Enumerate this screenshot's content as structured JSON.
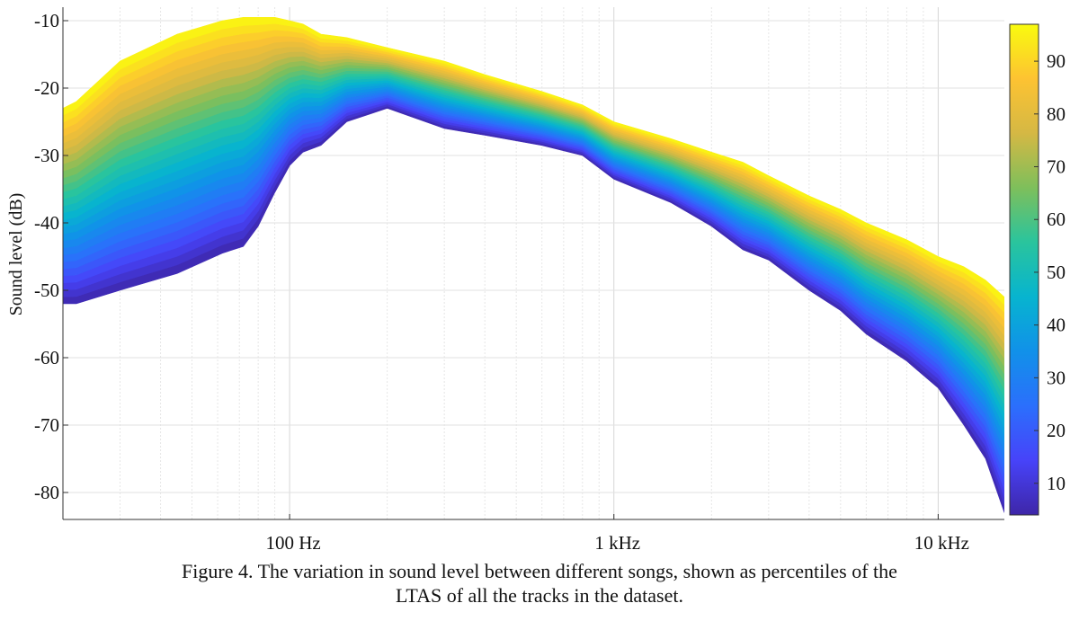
{
  "figure": {
    "caption_line1": "Figure 4. The variation in sound level between different songs, shown as percentiles of the",
    "caption_line2": "LTAS of all the tracks in the dataset."
  },
  "chart_data": {
    "type": "area",
    "ylabel": "Sound level (dB)",
    "xscale": "log",
    "xlim": [
      20,
      16000
    ],
    "ylim": [
      -84,
      -8
    ],
    "x_ticks": [
      {
        "value": 100,
        "label": "100 Hz"
      },
      {
        "value": 1000,
        "label": "1 kHz"
      },
      {
        "value": 10000,
        "label": "10 kHz"
      }
    ],
    "y_ticks": [
      -10,
      -20,
      -30,
      -40,
      -50,
      -60,
      -70,
      -80
    ],
    "grid": true,
    "colorbar": {
      "ticks": [
        10,
        20,
        30,
        40,
        50,
        60,
        70,
        80,
        90
      ],
      "range": [
        4,
        97
      ],
      "colormap": [
        "#3e26a8",
        "#4743f9",
        "#2b6ffc",
        "#1191e9",
        "#07b4cf",
        "#2ac49d",
        "#7ebf5b",
        "#d5b844",
        "#fdc332",
        "#f9fb0e"
      ]
    },
    "series": [
      {
        "percentile": "min",
        "x": [
          20,
          22,
          30,
          45,
          62,
          72,
          80,
          90,
          100,
          110,
          125,
          150,
          200,
          300,
          400,
          600,
          800,
          1000,
          1500,
          2000,
          2500,
          3000,
          4000,
          5000,
          6000,
          8000,
          10000,
          12000,
          14000,
          16000
        ],
        "y": [
          -52,
          -52,
          -50,
          -47.5,
          -44.5,
          -43.5,
          -40.5,
          -35.5,
          -31.5,
          -29.5,
          -28.5,
          -25,
          -23,
          -26,
          -27,
          -28.5,
          -30,
          -33.5,
          -37,
          -40.5,
          -44,
          -45.5,
          -50,
          -53,
          -56.5,
          -60.5,
          -64.5,
          -70,
          -75,
          -83
        ]
      },
      {
        "percentile": "max",
        "x": [
          20,
          22,
          30,
          45,
          62,
          72,
          80,
          90,
          100,
          110,
          125,
          150,
          200,
          300,
          400,
          600,
          800,
          1000,
          1500,
          2000,
          2500,
          3000,
          4000,
          5000,
          6000,
          8000,
          10000,
          12000,
          14000,
          16000
        ],
        "y": [
          -23,
          -22,
          -16,
          -12,
          -10,
          -9.5,
          -9.5,
          -9.5,
          -10,
          -10.5,
          -12,
          -12.5,
          -14,
          -16,
          -18,
          -20.5,
          -22.5,
          -25,
          -27.5,
          -29.5,
          -31,
          -33,
          -36,
          -38,
          -40,
          -42.5,
          -45,
          -46.5,
          -48.5,
          -51
        ]
      }
    ]
  }
}
